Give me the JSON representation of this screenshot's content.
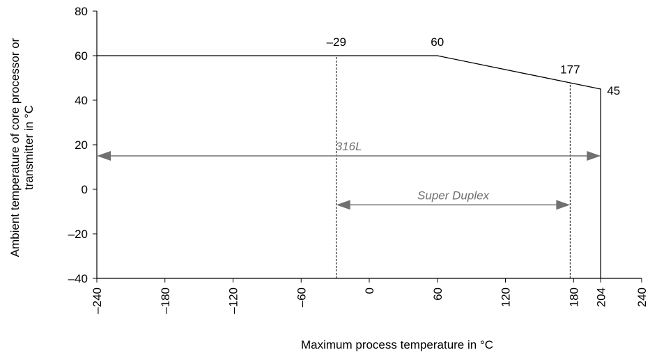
{
  "chart_data": {
    "type": "line",
    "xlabel": "Maximum process temperature in °C",
    "ylabel": [
      "Ambient temperature of core processor or",
      "transmitter in °C"
    ],
    "xlim": [
      -240,
      240
    ],
    "ylim": [
      -40,
      80
    ],
    "x_ticks": [
      -240,
      -180,
      -120,
      -60,
      0,
      60,
      120,
      180,
      204,
      240
    ],
    "x_tick_labels": [
      "–240",
      "–180",
      "–120",
      "–60",
      "0",
      "60",
      "120",
      "180",
      "204",
      "240"
    ],
    "y_ticks": [
      -40,
      -20,
      0,
      20,
      40,
      60,
      80
    ],
    "y_tick_labels": [
      "–40",
      "–20",
      "0",
      "20",
      "40",
      "60",
      "80"
    ],
    "grid": false,
    "series": [
      {
        "x": [
          -240,
          60,
          204,
          204
        ],
        "y": [
          60,
          60,
          45,
          -40
        ]
      }
    ],
    "reference_lines": [
      {
        "x": -29,
        "y_from": -40,
        "y_to": 60,
        "style": "dashed"
      },
      {
        "x": 177,
        "y_from": -40,
        "y_to": 47.7,
        "style": "dashed"
      }
    ],
    "ranges": [
      {
        "label": "316L",
        "x_from": -240,
        "x_to": 204,
        "y": 15,
        "color": "#707070"
      },
      {
        "label": "Super Duplex",
        "x_from": -29,
        "x_to": 177,
        "y": -7,
        "color": "#707070"
      }
    ],
    "annotations": [
      {
        "text": "–29",
        "x": -29,
        "y": 60
      },
      {
        "text": "60",
        "x": 60,
        "y": 60
      },
      {
        "text": "177",
        "x": 177,
        "y": 47.7
      },
      {
        "text": "45",
        "x": 204,
        "y": 45
      }
    ],
    "colors": {
      "line": "#000000",
      "range_arrow": "#707070"
    }
  }
}
